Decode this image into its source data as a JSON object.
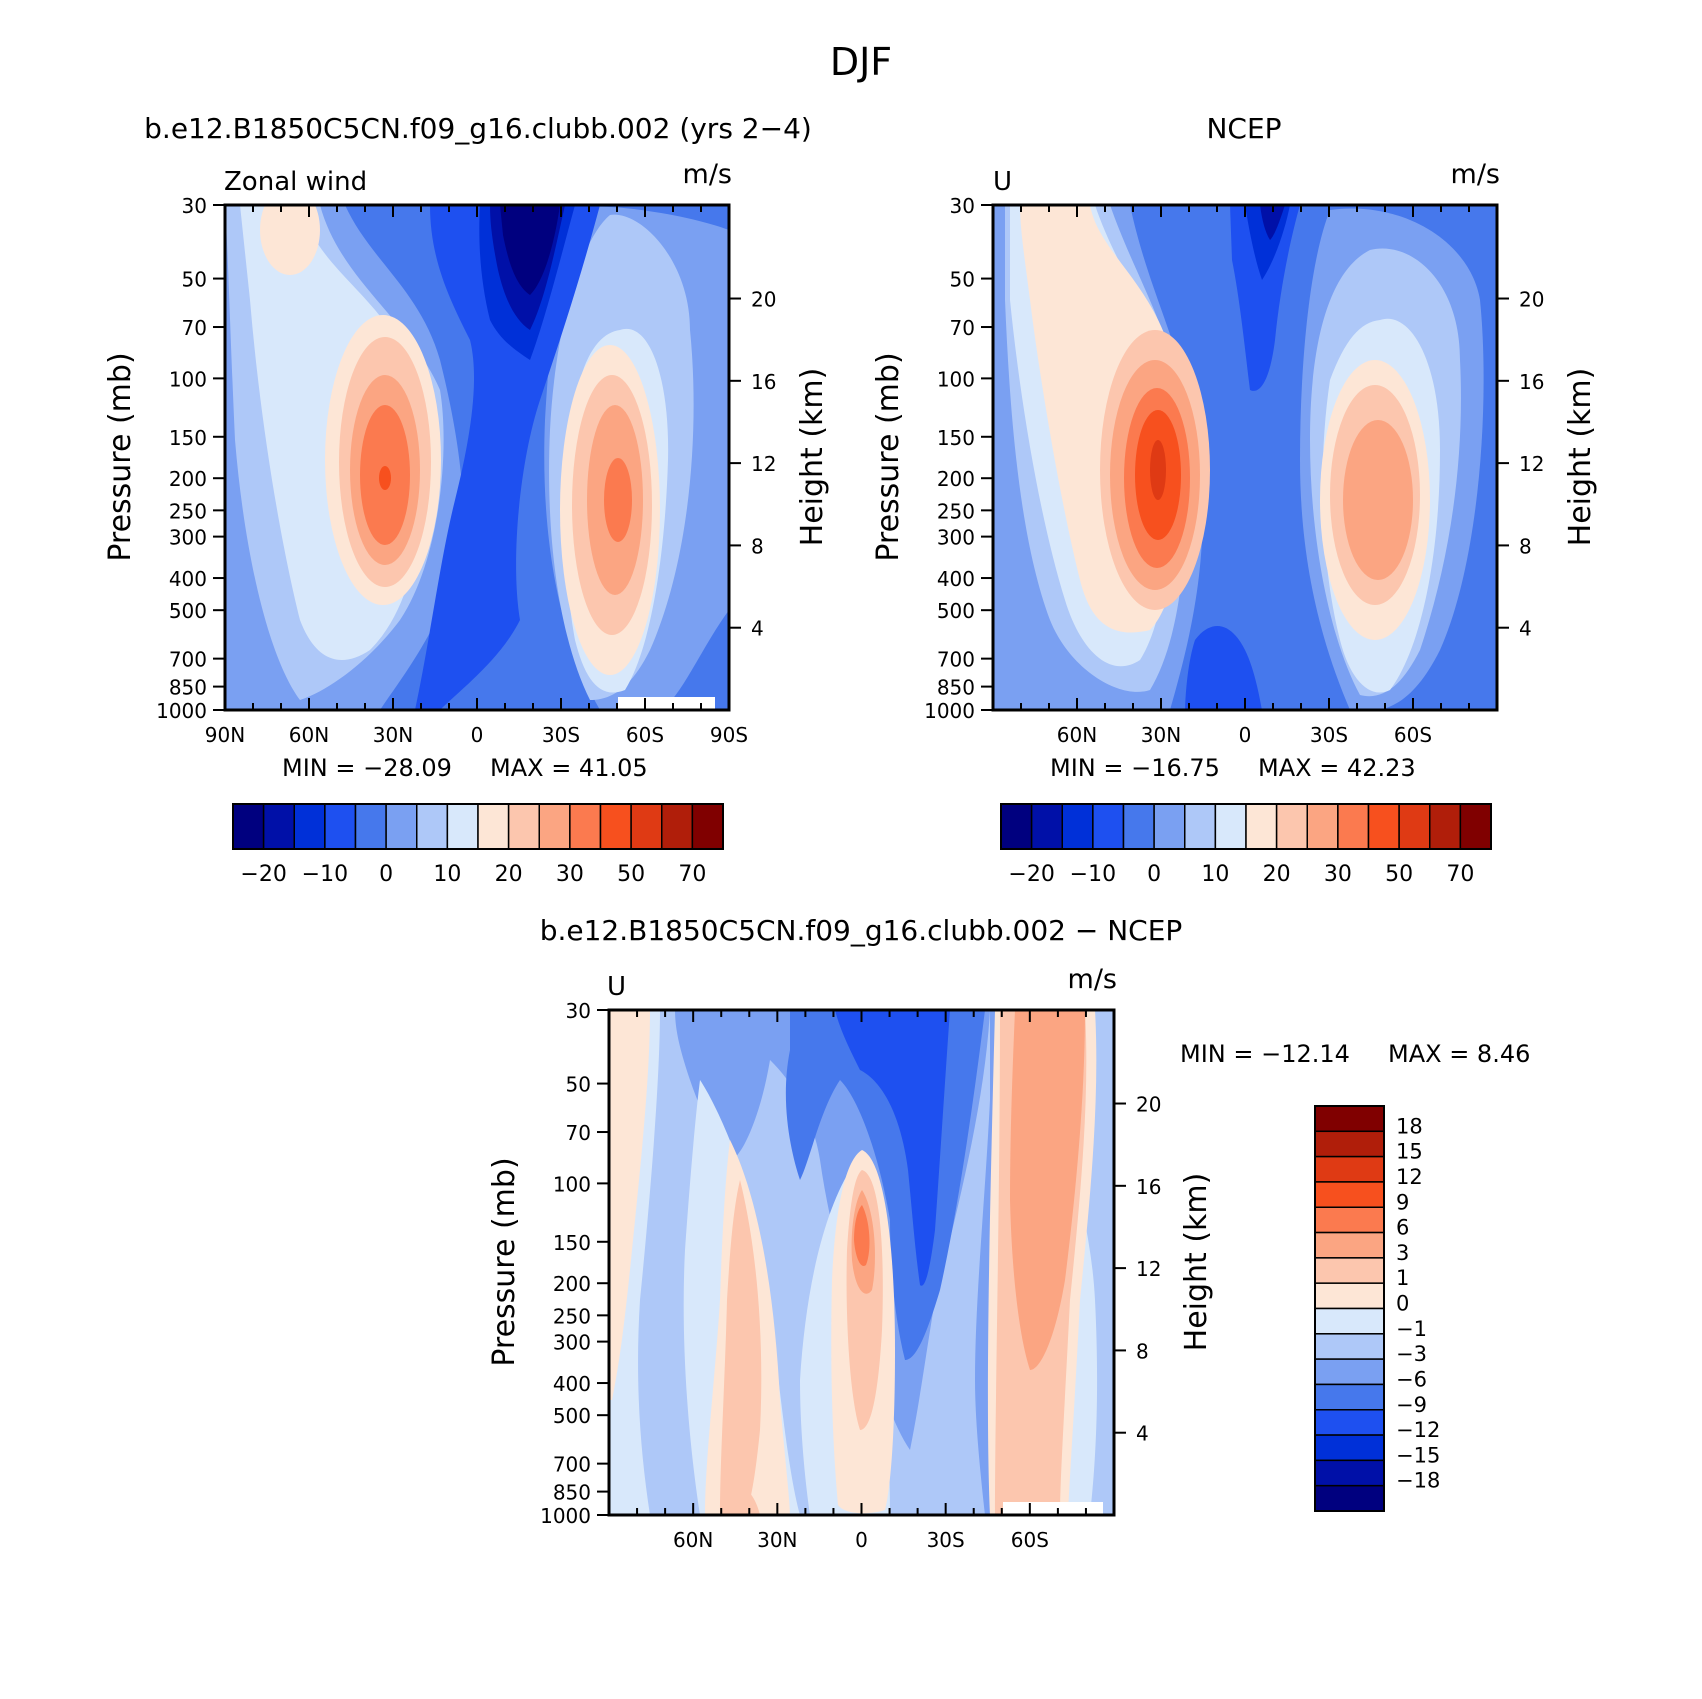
{
  "figure": {
    "title": "DJF"
  },
  "colors": {
    "model_scale": [
      "#00007f",
      "#0010a8",
      "#0030d8",
      "#1e50f0",
      "#4678ec",
      "#7aa0f2",
      "#aec8f8",
      "#d8e8fb",
      "#fde6d6",
      "#fcc6ae",
      "#fba582",
      "#fb7a4f",
      "#f7501e",
      "#df3a14",
      "#b01e0a",
      "#800000"
    ],
    "diff_scale": [
      "#800000",
      "#b01e0a",
      "#df3a14",
      "#f7501e",
      "#fb7a4f",
      "#fba582",
      "#fcc6ae",
      "#fde6d6",
      "#d8e8fb",
      "#aec8f8",
      "#7aa0f2",
      "#4678ec",
      "#1e50f0",
      "#0030d8",
      "#0010a8",
      "#00007f"
    ]
  },
  "chart_data": [
    {
      "type": "heatmap",
      "panel_title": "b.e12.B1850C5CN.f09_g16.clubb.002 (yrs 2−4)",
      "left_string": "Zonal wind",
      "right_string": "m/s",
      "ylabel": "Pressure (mb)",
      "ylabel_right": "Height (km)",
      "y_ticks": [
        "30",
        "50",
        "70",
        "100",
        "150",
        "200",
        "250",
        "300",
        "400",
        "500",
        "700",
        "850",
        "1000"
      ],
      "y_ticks_right": [
        "20",
        "16",
        "12",
        "8",
        "4"
      ],
      "x_ticks": [
        "90N",
        "60N",
        "30N",
        "0",
        "30S",
        "60S",
        "90S"
      ],
      "min_label": "MIN = −28.09",
      "max_label": "MAX = 41.05",
      "min": -28.09,
      "max": 41.05,
      "colorbar_labels": [
        "−20",
        "−10",
        "0",
        "10",
        "20",
        "30",
        "50",
        "70"
      ],
      "jets": [
        {
          "lat": 30,
          "pressure": 200,
          "value": 41.05
        },
        {
          "lat": -50,
          "pressure": 220,
          "value": 36
        }
      ],
      "minimum_center": {
        "lat": -15,
        "pressure": 30,
        "value": -28.09
      }
    },
    {
      "type": "heatmap",
      "panel_title": "NCEP",
      "left_string": "U",
      "right_string": "m/s",
      "ylabel": "Pressure (mb)",
      "ylabel_right": "Height (km)",
      "y_ticks": [
        "30",
        "50",
        "70",
        "100",
        "150",
        "200",
        "250",
        "300",
        "400",
        "500",
        "700",
        "850",
        "1000"
      ],
      "y_ticks_right": [
        "20",
        "16",
        "12",
        "8",
        "4"
      ],
      "x_ticks": [
        "60N",
        "30N",
        "0",
        "30S",
        "60S"
      ],
      "min_label": "MIN = −16.75",
      "max_label": "MAX = 42.23",
      "min": -16.75,
      "max": 42.23,
      "colorbar_labels": [
        "−20",
        "−10",
        "0",
        "10",
        "20",
        "30",
        "50",
        "70"
      ],
      "jets": [
        {
          "lat": 30,
          "pressure": 200,
          "value": 42.23
        },
        {
          "lat": -45,
          "pressure": 220,
          "value": 28
        }
      ]
    },
    {
      "type": "heatmap",
      "panel_title": "b.e12.B1850C5CN.f09_g16.clubb.002 − NCEP",
      "left_string": "U",
      "right_string": "m/s",
      "ylabel": "Pressure (mb)",
      "ylabel_right": "Height (km)",
      "y_ticks": [
        "30",
        "50",
        "70",
        "100",
        "150",
        "200",
        "250",
        "300",
        "400",
        "500",
        "700",
        "850",
        "1000"
      ],
      "y_ticks_right": [
        "20",
        "16",
        "12",
        "8",
        "4"
      ],
      "x_ticks": [
        "60N",
        "30N",
        "0",
        "30S",
        "60S"
      ],
      "min_label": "MIN = −12.14",
      "max_label": "MAX = 8.46",
      "min": -12.14,
      "max": 8.46,
      "colorbar_labels": [
        "18",
        "15",
        "12",
        "9",
        "6",
        "3",
        "1",
        "0",
        "−1",
        "−3",
        "−6",
        "−9",
        "−12",
        "−15",
        "−18"
      ]
    }
  ]
}
